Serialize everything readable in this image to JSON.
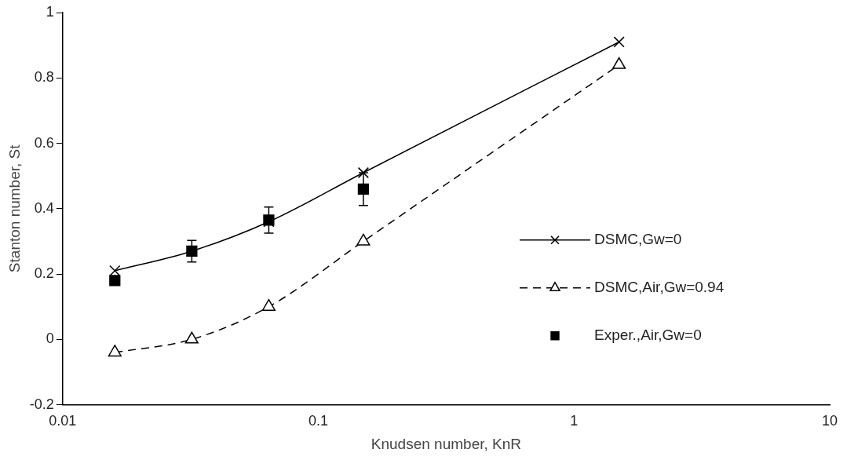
{
  "chart_data": {
    "type": "line",
    "xlabel": "Knudsen number, KnR",
    "ylabel": "Stanton number, St",
    "log": "x",
    "xlim": [
      0.01,
      10
    ],
    "xticks": [
      0.01,
      0.1,
      1,
      10
    ],
    "ylim": [
      -0.2,
      1
    ],
    "yticks": [
      -0.2,
      0,
      0.2,
      0.4,
      0.6,
      0.8,
      1
    ],
    "grid": false,
    "legend": "right",
    "series": [
      {
        "name": "DSMC,Gw=0",
        "color": "#000000",
        "marker": "cross",
        "line_style": "solid",
        "x": [
          0.016,
          0.032,
          0.064,
          0.15,
          1.5
        ],
        "values": [
          0.21,
          0.27,
          0.36,
          0.51,
          0.91
        ]
      },
      {
        "name": "DSMC,Air,Gw=0.94",
        "color": "#000000",
        "marker": "triangle",
        "line_style": "dashed",
        "x": [
          0.016,
          0.032,
          0.064,
          0.15,
          1.5
        ],
        "values": [
          -0.04,
          0.0,
          0.1,
          0.3,
          0.84
        ]
      },
      {
        "name": "Exper.,Air,Gw=0",
        "type": "scatter",
        "color": "#000000",
        "marker": "square",
        "x": [
          0.016,
          0.032,
          0.064,
          0.15
        ],
        "values": [
          0.18,
          0.27,
          0.365,
          0.46
        ],
        "errors": [
          null,
          0.033,
          0.04,
          0.05
        ]
      }
    ]
  }
}
